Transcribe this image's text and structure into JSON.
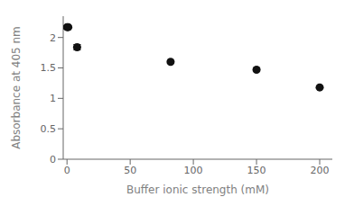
{
  "chart_data": {
    "type": "scatter",
    "x": [
      0,
      1,
      8,
      82,
      150,
      200
    ],
    "values": [
      2.17,
      2.17,
      1.84,
      1.6,
      1.47,
      1.18
    ],
    "yerr": [
      0.025,
      0.015,
      0.045,
      0.02,
      0.02,
      0.02
    ],
    "xlabel": "Buffer ionic strength (mM)",
    "ylabel": "Absorbance at 405 nm",
    "xlim": [
      -3,
      210
    ],
    "ylim": [
      0,
      2.35
    ],
    "xticks": [
      0,
      50,
      100,
      150,
      200
    ],
    "yticks": [
      0,
      0.5,
      1,
      1.5,
      2
    ],
    "color": "#111111",
    "marker": "circle",
    "grid": false
  }
}
